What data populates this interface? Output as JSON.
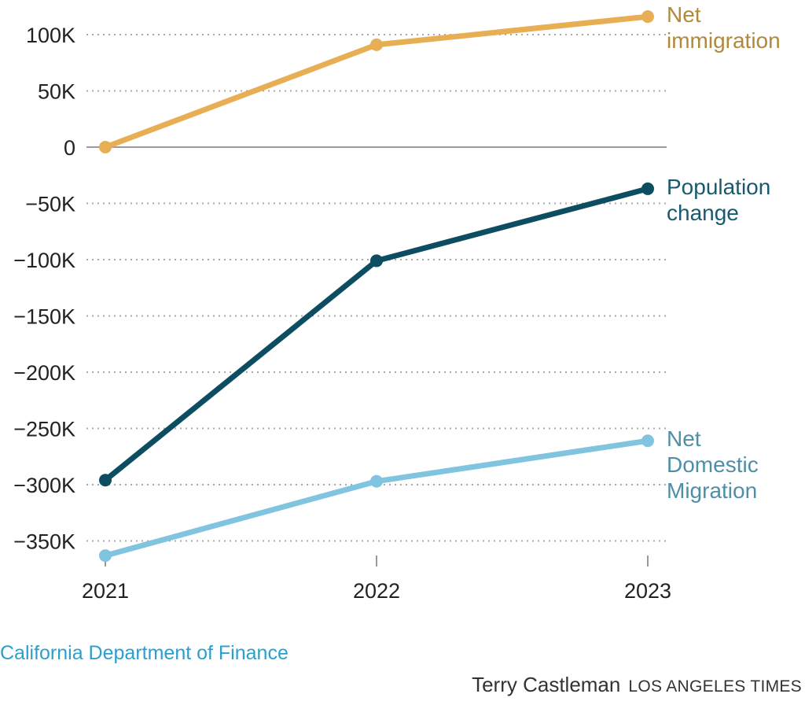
{
  "chart_data": {
    "type": "line",
    "title": "",
    "xlabel": "",
    "ylabel": "",
    "x": [
      "2021",
      "2022",
      "2023"
    ],
    "ylim": [
      -370000,
      120000
    ],
    "yticks": [
      100000,
      50000,
      0,
      -50000,
      -100000,
      -150000,
      -200000,
      -250000,
      -300000,
      -350000
    ],
    "ytick_labels": [
      "100K",
      "50K",
      "0",
      "−50K",
      "−100K",
      "−150K",
      "−200K",
      "−250K",
      "−300K",
      "−350K"
    ],
    "grid": true,
    "legend": "direct labels at right",
    "series": [
      {
        "name": "Net immigration",
        "label_lines": [
          "Net",
          "immigration"
        ],
        "color": "#e8ae54",
        "label_color": "#b08a3a",
        "values": [
          0,
          91000,
          116000
        ]
      },
      {
        "name": "Population change",
        "label_lines": [
          "Population",
          "change"
        ],
        "color": "#0c4d62",
        "label_color": "#1a5a6e",
        "values": [
          -296000,
          -101000,
          -37000
        ]
      },
      {
        "name": "Net Domestic Migration",
        "label_lines": [
          "Net",
          "Domestic",
          "Migration"
        ],
        "color": "#80c4df",
        "label_color": "#4e8fa8",
        "values": [
          -363000,
          -297000,
          -261000
        ]
      }
    ]
  },
  "footer": {
    "source": "California Department of Finance",
    "author": "Terry Castleman",
    "publisher": "LOS ANGELES TIMES"
  }
}
